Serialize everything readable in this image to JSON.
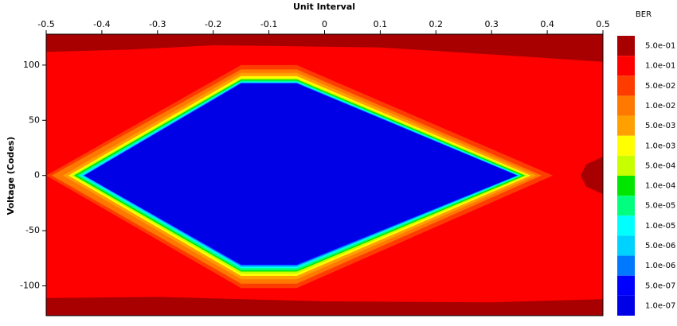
{
  "chart_data": {
    "type": "contour",
    "xlabel": "Unit Interval",
    "ylabel": "Voltage (Codes)",
    "legend_title": "BER",
    "xlim": [
      -0.5,
      0.5
    ],
    "xticks": [
      -0.5,
      -0.4,
      -0.3,
      -0.2,
      -0.1,
      0,
      0.1,
      0.2,
      0.3,
      0.4,
      0.5
    ],
    "ylim": [
      -127,
      128
    ],
    "yticks": [
      -100,
      -50,
      0,
      50,
      100
    ],
    "series": [
      {
        "name": "5.0e-01",
        "color": "#a80000",
        "x": [
          -0.5,
          0.5,
          0.5,
          0.35,
          0.1,
          -0.2,
          -0.35,
          -0.5,
          null,
          -0.5,
          0.5,
          0.5,
          0.3,
          0,
          -0.3,
          -0.5,
          null,
          0.47,
          0.5,
          0.5,
          0.47,
          0.46
        ],
        "y": [
          128,
          128,
          103,
          108,
          116,
          118,
          114,
          112,
          null,
          -127,
          -127,
          -112,
          -115,
          -114,
          -110,
          -111,
          null,
          10,
          17,
          -17,
          -10,
          0
        ]
      },
      {
        "name": "1.0e-01",
        "color": "#ff0000",
        "x": [
          -0.5,
          0.5,
          0.5,
          -0.5
        ],
        "y": [
          128,
          128,
          -127,
          -127
        ]
      },
      {
        "name": "5.0e-02",
        "color": "#ff3c00",
        "x": [
          -0.5,
          -0.15,
          -0.05,
          0.41,
          -0.05,
          -0.15
        ],
        "y": [
          0,
          100,
          100,
          0,
          -102,
          -102
        ]
      },
      {
        "name": "1.0e-02",
        "color": "#ff7800",
        "x": [
          -0.49,
          -0.15,
          -0.05,
          0.39,
          -0.05,
          -0.15
        ],
        "y": [
          0,
          96,
          96,
          0,
          -98,
          -98
        ]
      },
      {
        "name": "5.0e-03",
        "color": "#ffa000",
        "x": [
          -0.47,
          -0.15,
          -0.05,
          0.38,
          -0.05,
          -0.15
        ],
        "y": [
          0,
          93,
          93,
          0,
          -94,
          -94
        ]
      },
      {
        "name": "1.0e-03",
        "color": "#ffff00",
        "x": [
          -0.46,
          -0.15,
          -0.05,
          0.37,
          -0.05,
          -0.15
        ],
        "y": [
          0,
          90,
          90,
          0,
          -91,
          -91
        ]
      },
      {
        "name": "5.0e-04",
        "color": "#c8ff00",
        "x": [
          -0.455,
          -0.15,
          -0.05,
          0.365,
          -0.05,
          -0.15
        ],
        "y": [
          0,
          88,
          88,
          0,
          -89,
          -89
        ]
      },
      {
        "name": "1.0e-04",
        "color": "#00e600",
        "x": [
          -0.45,
          -0.15,
          -0.05,
          0.36,
          -0.05,
          -0.15
        ],
        "y": [
          0,
          87,
          87,
          0,
          -87,
          -87
        ]
      },
      {
        "name": "5.0e-05",
        "color": "#00ff7f",
        "x": [
          -0.445,
          -0.15,
          -0.05,
          0.355,
          -0.05,
          -0.15
        ],
        "y": [
          0,
          86,
          86,
          0,
          -86,
          -86
        ]
      },
      {
        "name": "1.0e-05",
        "color": "#00ffff",
        "x": [
          -0.44,
          -0.15,
          -0.05,
          0.352,
          -0.05,
          -0.15
        ],
        "y": [
          0,
          85,
          85,
          0,
          -84,
          -84
        ]
      },
      {
        "name": "5.0e-06",
        "color": "#00d2ff",
        "x": [
          -0.437,
          -0.15,
          -0.05,
          0.35,
          -0.05,
          -0.15
        ],
        "y": [
          0,
          84.5,
          84.5,
          0,
          -83,
          -83
        ]
      },
      {
        "name": "1.0e-06",
        "color": "#0078ff",
        "x": [
          -0.433,
          -0.15,
          -0.05,
          0.348,
          -0.05,
          -0.15
        ],
        "y": [
          0,
          84,
          84,
          0,
          -82,
          -82
        ]
      },
      {
        "name": "5.0e-07",
        "color": "#0000ff",
        "x": [
          -0.432,
          -0.15,
          -0.05,
          0.346,
          -0.05,
          -0.15
        ],
        "y": [
          0,
          83.5,
          83.5,
          0,
          -81,
          -81
        ]
      },
      {
        "name": "1.0e-07",
        "color": "#0000e6",
        "x": [
          -0.43,
          -0.15,
          -0.05,
          0.345,
          -0.05,
          -0.15
        ],
        "y": [
          0,
          83,
          83,
          0,
          -80,
          -80
        ]
      }
    ]
  }
}
